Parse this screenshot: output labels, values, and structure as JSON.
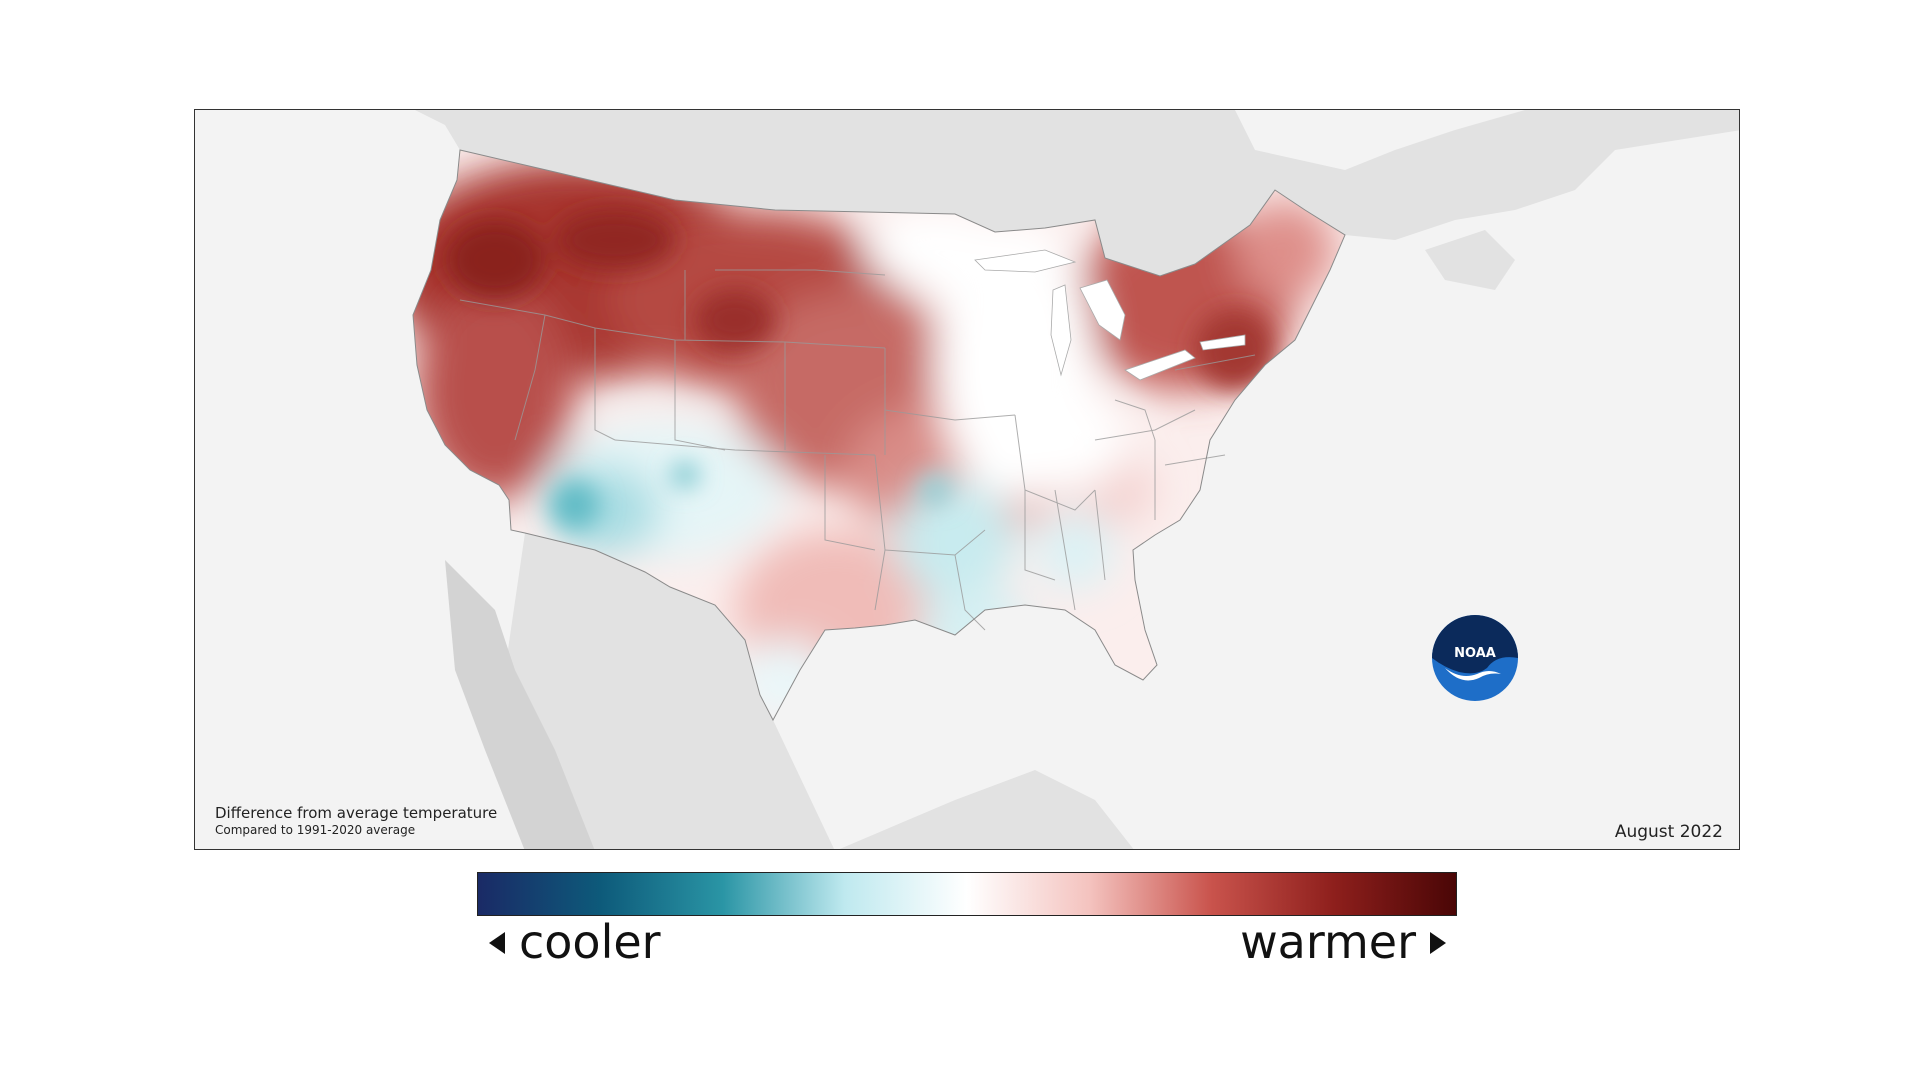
{
  "map": {
    "caption_title": "Difference from average temperature",
    "caption_subtitle": "Compared to 1991-2020 average",
    "date": "August 2022",
    "logo_text": "NOAA",
    "colors": {
      "ocean": "#f3f3f3",
      "land_outside": "#e2e2e2",
      "much_warmer": "#9d2b28",
      "warmer": "#d98a86",
      "slightly_warmer": "#f6d2cf",
      "near_average": "#ffffff",
      "cooler": "#bfe6ea",
      "much_cooler": "#5fb9c4"
    }
  },
  "legend": {
    "cooler_label": "cooler",
    "warmer_label": "warmer",
    "gradient_stops": [
      "#1a2a66",
      "#0d5a7a",
      "#2a95a5",
      "#bfe9ef",
      "#ffffff",
      "#f4c3bf",
      "#c9534c",
      "#8e1f1c",
      "#4a0606"
    ]
  }
}
